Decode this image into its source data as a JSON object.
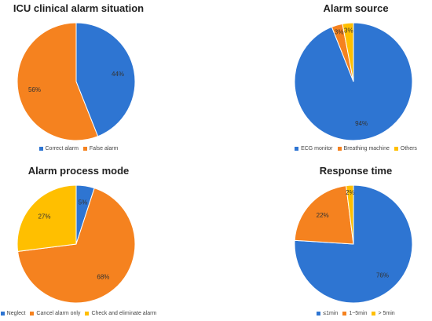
{
  "chart_data": [
    {
      "type": "pie",
      "title": "ICU clinical alarm situation",
      "categories": [
        "Correct alarm",
        "False alarm"
      ],
      "values": [
        44,
        56
      ],
      "labels": [
        "44%",
        "56%"
      ],
      "colors": [
        "#2e75d2",
        "#f5821f"
      ],
      "legend": "bottom"
    },
    {
      "type": "pie",
      "title": "Alarm source",
      "categories": [
        "ECG monitor",
        "Breathing machine",
        "Others"
      ],
      "values": [
        94,
        3,
        3
      ],
      "labels": [
        "94%",
        "3%",
        "3%"
      ],
      "colors": [
        "#2e75d2",
        "#f5821f",
        "#ffbf00"
      ],
      "legend": "bottom"
    },
    {
      "type": "pie",
      "title": "Alarm process mode",
      "categories": [
        "Neglect",
        "Cancel alarm only",
        "Check and eliminate alarm"
      ],
      "values": [
        5,
        68,
        27
      ],
      "labels": [
        "5%",
        "68%",
        "27%"
      ],
      "colors": [
        "#2e75d2",
        "#f5821f",
        "#ffbf00"
      ],
      "legend": "bottom"
    },
    {
      "type": "pie",
      "title": "Response time",
      "categories": [
        "≤1min",
        "1~5min",
        "> 5min"
      ],
      "values": [
        76,
        22,
        2
      ],
      "labels": [
        "76%",
        "22%",
        "2%"
      ],
      "colors": [
        "#2e75d2",
        "#f5821f",
        "#ffbf00"
      ],
      "legend": "bottom"
    }
  ]
}
